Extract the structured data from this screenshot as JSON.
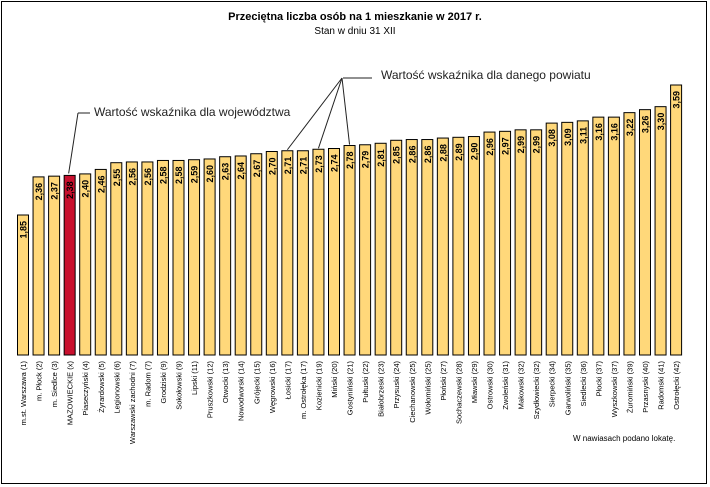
{
  "chart_data": {
    "type": "bar",
    "title": "Przeciętna liczba osób na 1 mieszkanie w 2017 r.",
    "subtitle": "Stan w dniu 31 XII",
    "categories": [
      "m.st. Warszawa (1)",
      "m. Płock (2)",
      "m. Siedlce (3)",
      "MAZOWIECKIE (x)",
      "Piaseczyński (4)",
      "Żyrardowski (5)",
      "Legionowski (6)",
      "Warszawski zachodni (7)",
      "m. Radom (7)",
      "Grodziski (9)",
      "Sokołowski (9)",
      "Lipski (11)",
      "Pruszkowski (12)",
      "Otwocki (13)",
      "Nowodworski (14)",
      "Grójecki (15)",
      "Węgrowski (16)",
      "Łosicki (17)",
      "m. Ostrołęka (17)",
      "Kozienicki (19)",
      "Miński (20)",
      "Gostyniński (21)",
      "Pułtuski (22)",
      "Białobrzeski (23)",
      "Przysuski (24)",
      "Ciechanowski (25)",
      "Wołomiński (25)",
      "Płoński (27)",
      "Sochaczewski (28)",
      "Mławski (29)",
      "Ostrowski (30)",
      "Zwoleński (31)",
      "Makowski (32)",
      "Szydłowiecki (32)",
      "Sierpecki (34)",
      "Garwoliński (35)",
      "Siedlecki (36)",
      "Płocki (37)",
      "Wyszkowski (37)",
      "Żuromiński (39)",
      "Przasnyski (40)",
      "Radomski (41)",
      "Ostrołęcki (42)"
    ],
    "values": [
      1.85,
      2.36,
      2.37,
      2.38,
      2.4,
      2.46,
      2.55,
      2.56,
      2.56,
      2.58,
      2.58,
      2.59,
      2.6,
      2.63,
      2.64,
      2.67,
      2.7,
      2.71,
      2.71,
      2.73,
      2.74,
      2.78,
      2.79,
      2.81,
      2.85,
      2.86,
      2.86,
      2.88,
      2.89,
      2.9,
      2.96,
      2.97,
      2.99,
      2.99,
      3.08,
      3.09,
      3.11,
      3.16,
      3.16,
      3.22,
      3.26,
      3.3,
      3.59
    ],
    "value_labels": [
      "1,85",
      "2,36",
      "2,37",
      "2,38",
      "2,40",
      "2,46",
      "2,55",
      "2,56",
      "2,56",
      "2,58",
      "2,58",
      "2,59",
      "2,60",
      "2,63",
      "2,64",
      "2,67",
      "2,70",
      "2,71",
      "2,71",
      "2,73",
      "2,74",
      "2,78",
      "2,79",
      "2,81",
      "2,85",
      "2,86",
      "2,86",
      "2,88",
      "2,89",
      "2,90",
      "2,96",
      "2,97",
      "2,99",
      "2,99",
      "3,08",
      "3,09",
      "3,11",
      "3,16",
      "3,16",
      "3,22",
      "3,26",
      "3,30",
      "3,59"
    ],
    "highlight_index": 3,
    "colors": {
      "bar": "#FFD87A",
      "highlight": "#C8102E",
      "stroke": "#000000",
      "callout": "#222222"
    },
    "annotations": {
      "powiat": {
        "text": "Wartość wskaźnika dla danego powiatu",
        "targets": [
          17,
          19,
          21
        ]
      },
      "wojewodztwo": {
        "text": "Wartość wskaźnika dla województwa",
        "targets": [
          3
        ]
      }
    },
    "footnote": "W nawiasach podano lokatę.",
    "grid": false,
    "legend": "none"
  }
}
